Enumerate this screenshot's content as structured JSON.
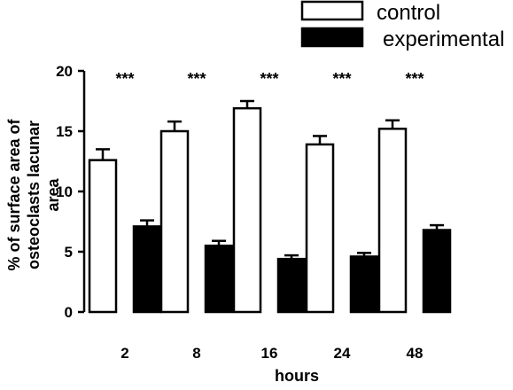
{
  "chart_data": {
    "type": "bar",
    "title": "",
    "xlabel": "hours",
    "ylabel_lines": [
      "% of surface area of",
      "osteoclasts lacunar",
      "area"
    ],
    "categories": [
      "2",
      "8",
      "16",
      "24",
      "48"
    ],
    "ylim": [
      0,
      20
    ],
    "yticks": [
      "0",
      "5",
      "10",
      "15",
      "20"
    ],
    "legend_position": "top-right",
    "series": [
      {
        "name": "control",
        "fill": "#ffffff",
        "values": [
          12.6,
          15.0,
          16.9,
          13.9,
          15.2
        ],
        "errors": [
          0.9,
          0.8,
          0.6,
          0.7,
          0.7
        ]
      },
      {
        "name": "experimental",
        "fill": "#000000",
        "values": [
          7.1,
          5.5,
          4.4,
          4.6,
          6.8
        ],
        "errors": [
          0.5,
          0.4,
          0.3,
          0.3,
          0.4
        ]
      }
    ],
    "annotations": [
      "***",
      "***",
      "***",
      "***",
      "***"
    ]
  }
}
